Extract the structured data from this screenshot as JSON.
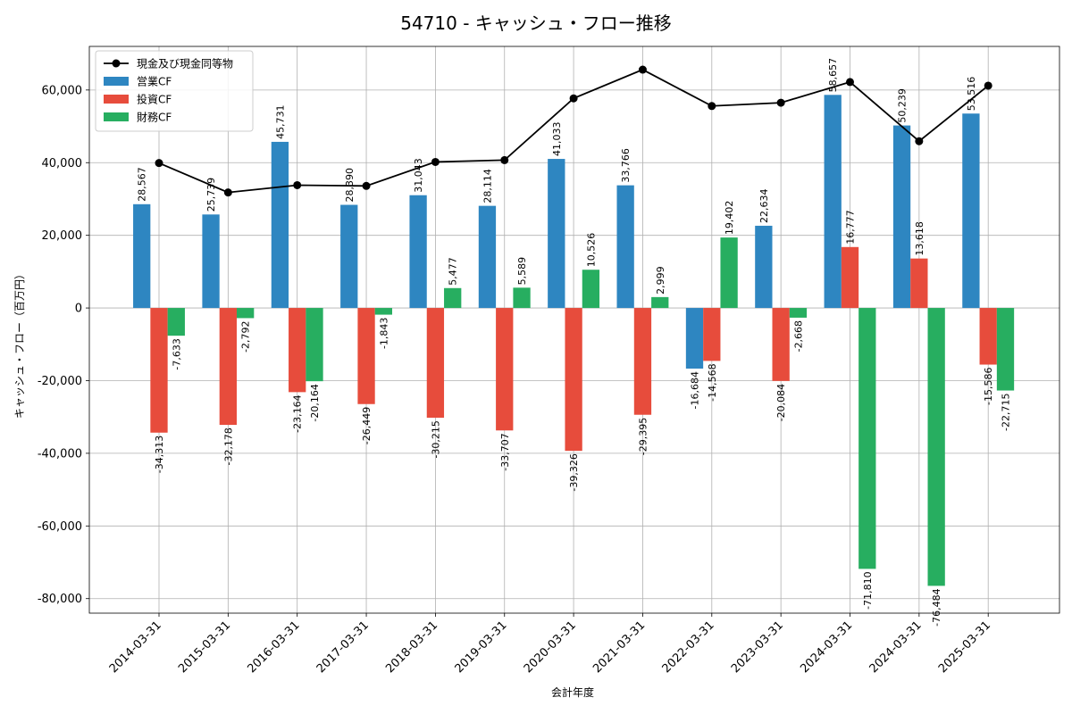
{
  "chart_data": {
    "type": "bar",
    "title": "54710 - キャッシュ・フロー推移",
    "xlabel": "会計年度",
    "ylabel": "キャッシュ・フロー（百万円）",
    "ylim": [
      -84000,
      72000
    ],
    "yticks": [
      -80000,
      -60000,
      -40000,
      -20000,
      0,
      20000,
      40000,
      60000
    ],
    "ytick_labels": [
      "-80,000",
      "-60,000",
      "-40,000",
      "-20,000",
      "0",
      "20,000",
      "40,000",
      "60,000"
    ],
    "grid": true,
    "legend_position": "top-left",
    "categories": [
      "2014-03-31",
      "2015-03-31",
      "2016-03-31",
      "2017-03-31",
      "2018-03-31",
      "2019-03-31",
      "2020-03-31",
      "2021-03-31",
      "2022-03-31",
      "2023-03-31",
      "2024-03-31",
      "2024-03-31",
      "2025-03-31"
    ],
    "series": [
      {
        "name": "営業CF",
        "type": "bar",
        "color": "#2e86c1",
        "values": [
          28567,
          25739,
          45731,
          28390,
          31043,
          28114,
          41033,
          33766,
          -16684,
          22634,
          58657,
          50239,
          53516
        ],
        "labels": [
          "28,567",
          "25,739",
          "45,731",
          "28,390",
          "31,043",
          "28,114",
          "41,033",
          "33,766",
          "-16,684",
          "22,634",
          "58,657",
          "50,239",
          "53,516"
        ]
      },
      {
        "name": "投資CF",
        "type": "bar",
        "color": "#e74c3c",
        "values": [
          -34313,
          -32178,
          -23164,
          -26449,
          -30215,
          -33707,
          -39326,
          -29395,
          -14568,
          -20084,
          16777,
          13618,
          -15586
        ],
        "labels": [
          "-34,313",
          "-32,178",
          "-23,164",
          "-26,449",
          "-30,215",
          "-33,707",
          "-39,326",
          "-29,395",
          "-14,568",
          "-20,084",
          "16,777",
          "13,618",
          "-15,586"
        ]
      },
      {
        "name": "財務CF",
        "type": "bar",
        "color": "#27ae60",
        "values": [
          -7633,
          -2792,
          -20164,
          -1843,
          5477,
          5589,
          10526,
          2999,
          19402,
          -2668,
          -71810,
          -76484,
          -22715
        ],
        "labels": [
          "-7,633",
          "-2,792",
          "-20,164",
          "-1,843",
          "5,477",
          "5,589",
          "10,526",
          "2,999",
          "19,402",
          "-2,668",
          "-71,810",
          "-76,484",
          "-22,715"
        ]
      },
      {
        "name": "現金及び現金同等物",
        "type": "line",
        "color": "#000000",
        "values": [
          39900,
          31800,
          33800,
          33600,
          40200,
          40700,
          57700,
          65600,
          55600,
          56500,
          62200,
          45900,
          61200
        ]
      }
    ]
  }
}
